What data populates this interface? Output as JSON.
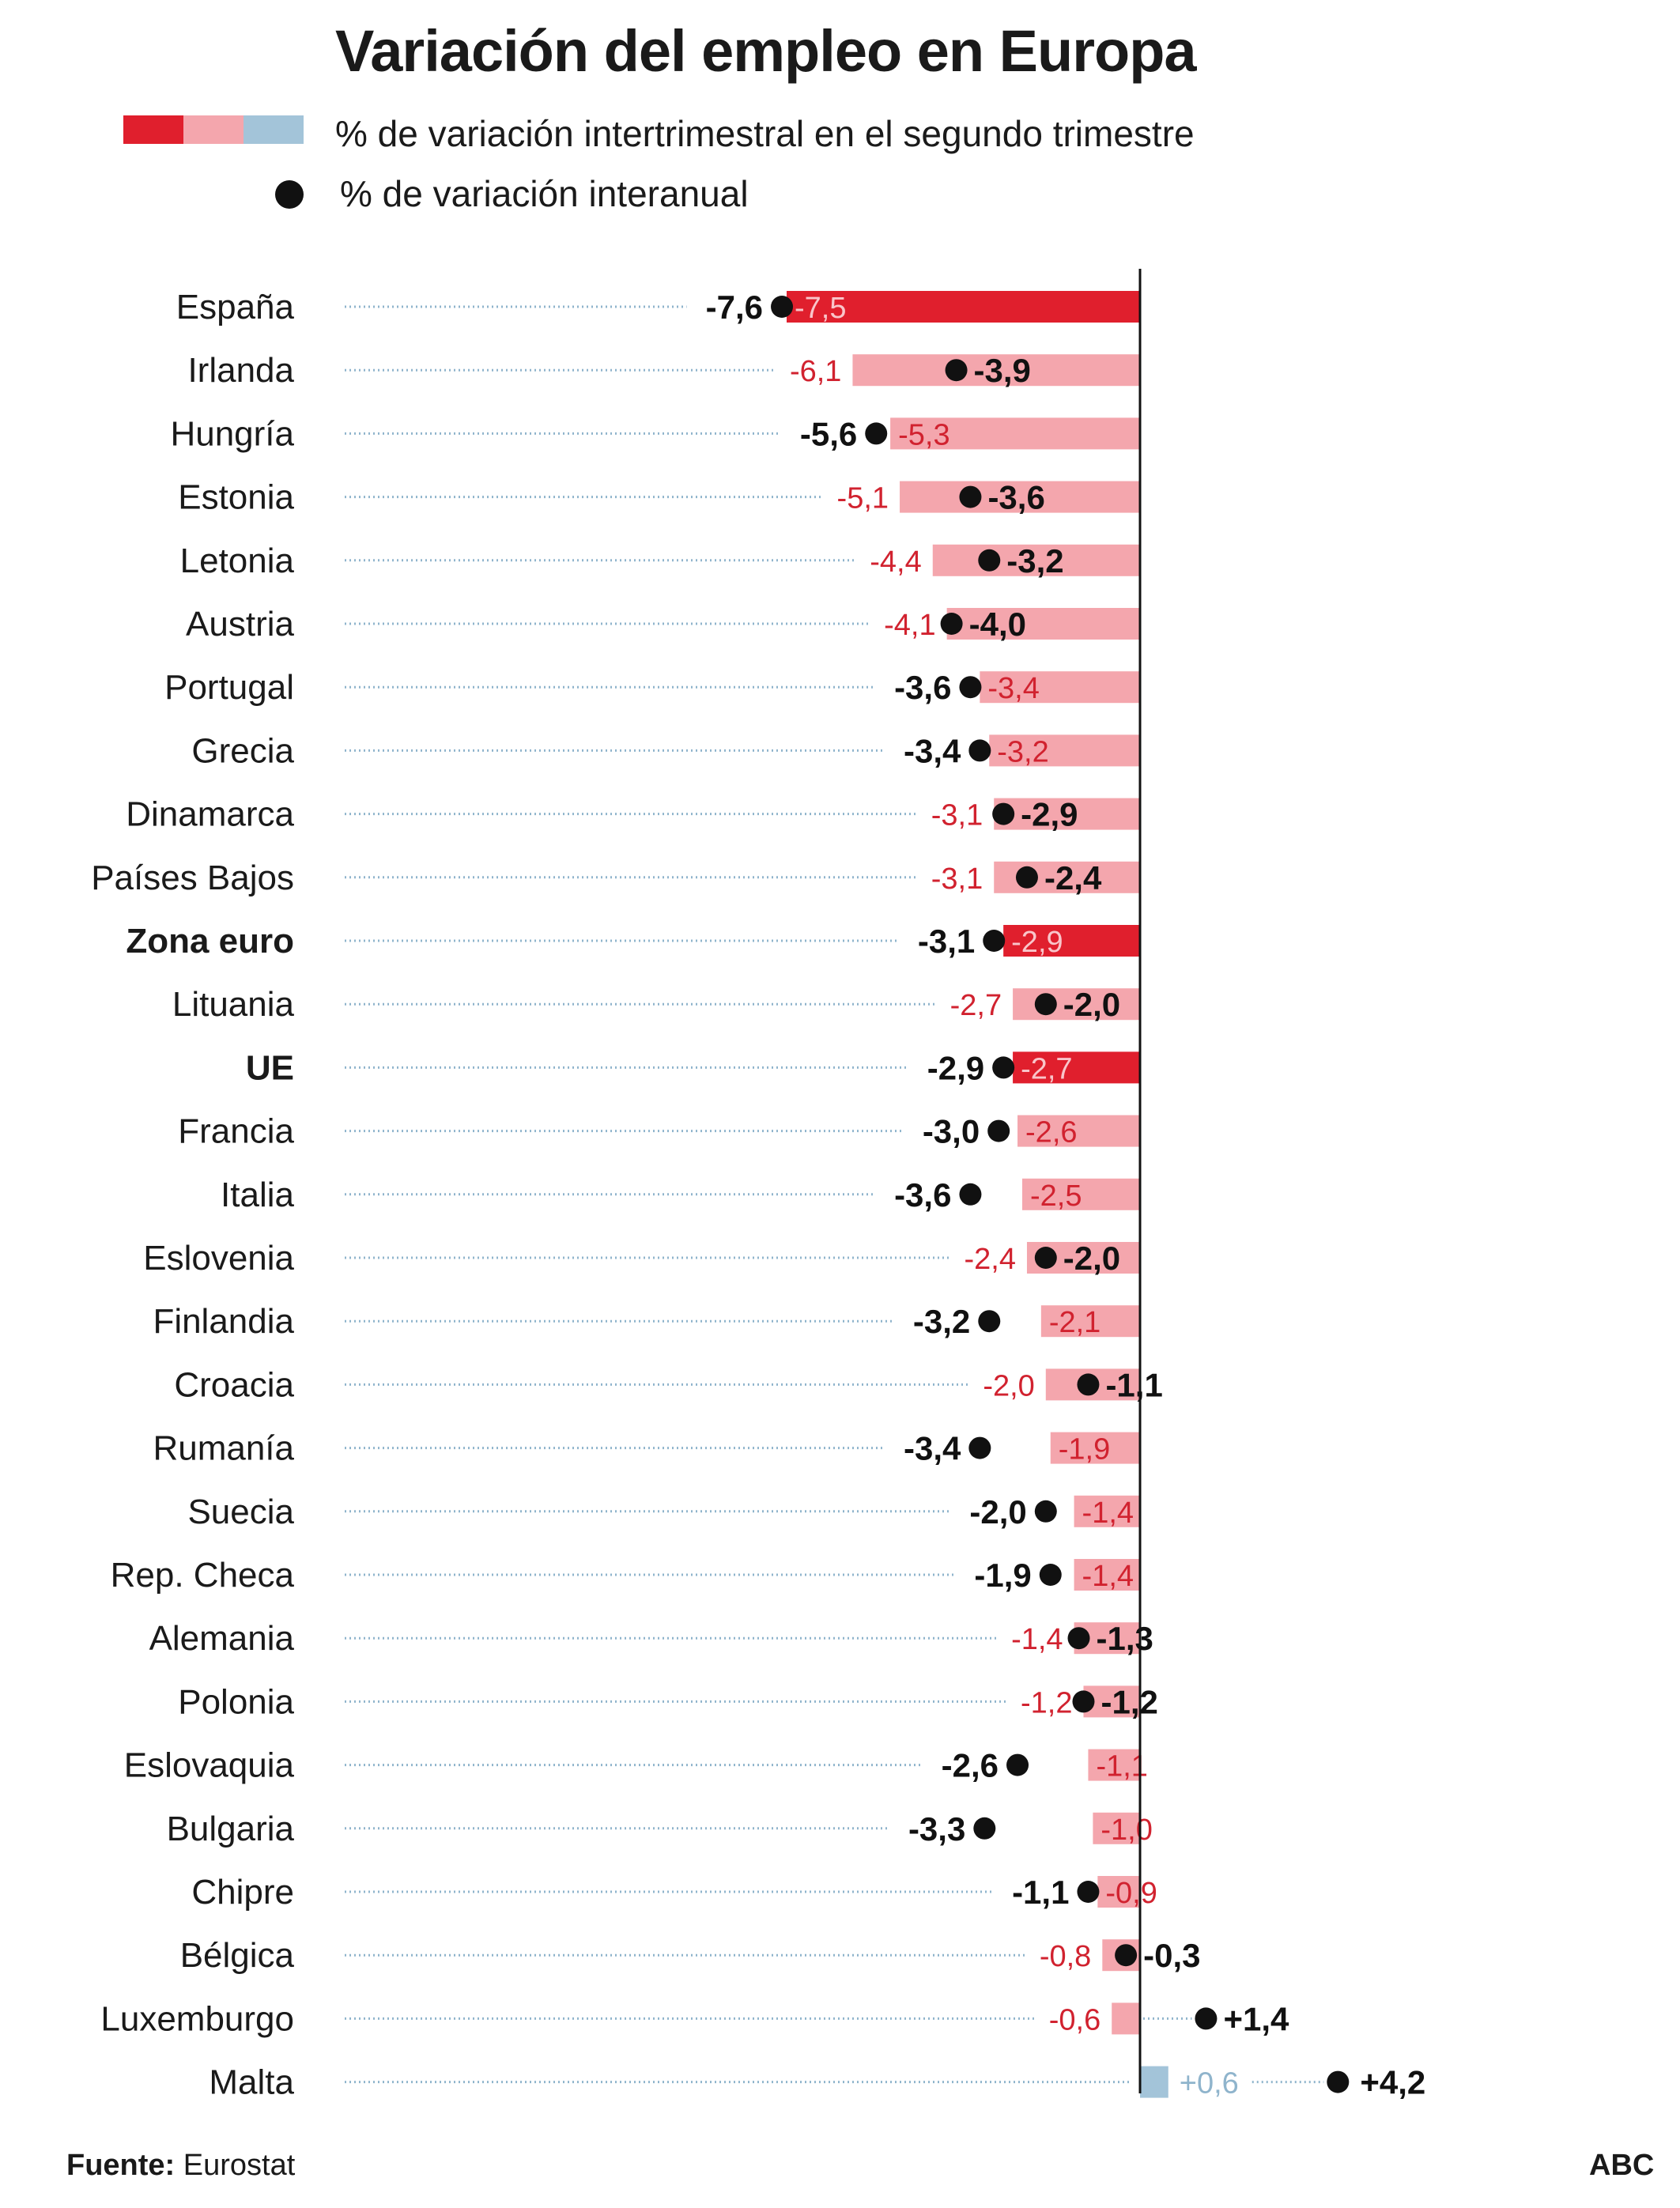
{
  "title": "Variación del empleo en Europa",
  "legend": {
    "quarterly_label": "% de variación intertrimestral en el segundo trimestre",
    "annual_label": "% de variación interanual",
    "swatch_colors": [
      "#e01f2d",
      "#f4a6ad",
      "#a3c4d9"
    ]
  },
  "colors": {
    "highlight_bar": "#e01f2d",
    "negative_bar": "#f4a6ad",
    "positive_bar": "#a3c4d9",
    "quarterly_label_on_dark": "#f9c5ca",
    "quarterly_label_negative": "#d1222f",
    "quarterly_label_positive": "#8fb4cc",
    "leader_line": "#8fb4cc",
    "dot": "#111111"
  },
  "chart_data": {
    "type": "bar",
    "orientation": "horizontal",
    "title": "Variación del empleo en Europa",
    "xlim": [
      -8.1,
      5.6
    ],
    "categories": [
      "España",
      "Irlanda",
      "Hungría",
      "Estonia",
      "Letonia",
      "Austria",
      "Portugal",
      "Grecia",
      "Dinamarca",
      "Países Bajos",
      "Zona euro",
      "Lituania",
      "UE",
      "Francia",
      "Italia",
      "Eslovenia",
      "Finlandia",
      "Croacia",
      "Rumanía",
      "Suecia",
      "Rep. Checa",
      "Alemania",
      "Polonia",
      "Eslovaquia",
      "Bulgaria",
      "Chipre",
      "Bélgica",
      "Luxemburgo",
      "Malta"
    ],
    "highlighted": [
      "España",
      "Zona euro",
      "UE"
    ],
    "bold_categories": [
      "Zona euro",
      "UE"
    ],
    "series": [
      {
        "name": "% de variación intertrimestral en el segundo trimestre",
        "mark": "bar",
        "values": [
          -7.5,
          -6.1,
          -5.3,
          -5.1,
          -4.4,
          -4.1,
          -3.4,
          -3.2,
          -3.1,
          -3.1,
          -2.9,
          -2.7,
          -2.7,
          -2.6,
          -2.5,
          -2.4,
          -2.1,
          -2.0,
          -1.9,
          -1.4,
          -1.4,
          -1.4,
          -1.2,
          -1.1,
          -1.0,
          -0.9,
          -0.8,
          -0.6,
          0.6
        ],
        "labels": [
          "-7,5",
          "-6,1",
          "-5,3",
          "-5,1",
          "-4,4",
          "-4,1",
          "-3,4",
          "-3,2",
          "-3,1",
          "-3,1",
          "-2,9",
          "-2,7",
          "-2,7",
          "-2,6",
          "-2,5",
          "-2,4",
          "-2,1",
          "-2,0",
          "-1,9",
          "-1,4",
          "-1,4",
          "-1,4",
          "-1,2",
          "-1,1",
          "-1,0",
          "-0,9",
          "-0,8",
          "-0,6",
          "+0,6"
        ]
      },
      {
        "name": "% de variación interanual",
        "mark": "dot",
        "values": [
          -7.6,
          -3.9,
          -5.6,
          -3.6,
          -3.2,
          -4.0,
          -3.6,
          -3.4,
          -2.9,
          -2.4,
          -3.1,
          -2.0,
          -2.9,
          -3.0,
          -3.6,
          -2.0,
          -3.2,
          -1.1,
          -3.4,
          -2.0,
          -1.9,
          -1.3,
          -1.2,
          -2.6,
          -3.3,
          -1.1,
          -0.3,
          1.4,
          4.2
        ],
        "labels": [
          "-7,6",
          "-3,9",
          "-5,6",
          "-3,6",
          "-3,2",
          "-4,0",
          "-3,6",
          "-3,4",
          "-2,9",
          "-2,4",
          "-3,1",
          "-2,0",
          "-2,9",
          "-3,0",
          "-3,6",
          "-2,0",
          "-3,2",
          "-1,1",
          "-3,4",
          "-2,0",
          "-1,9",
          "-1,3",
          "-1,2",
          "-2,6",
          "-3,3",
          "-1,1",
          "-0,3",
          "+1,4",
          "+4,2"
        ]
      }
    ]
  },
  "footer": {
    "source_label": "Fuente:",
    "source_value": "Eurostat",
    "brand": "ABC"
  }
}
